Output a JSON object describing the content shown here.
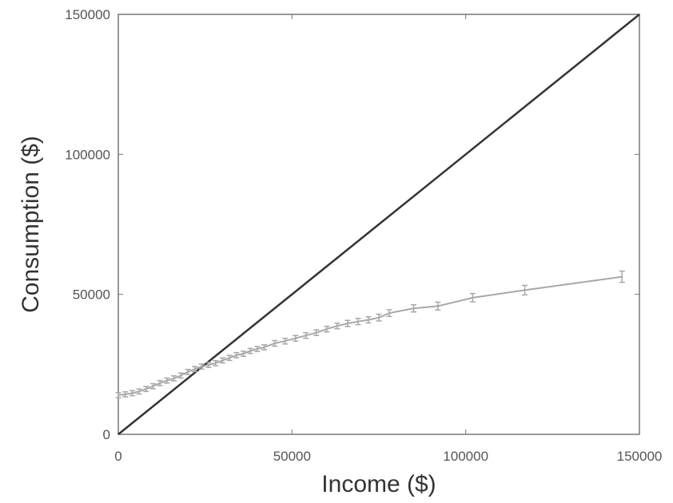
{
  "chart_data": {
    "type": "line",
    "title": "",
    "xlabel": "Income ($)",
    "ylabel": "Consumption ($)",
    "xlim": [
      0,
      150000
    ],
    "ylim": [
      0,
      150000
    ],
    "xticks": [
      "0",
      "50000",
      "100000",
      "150000"
    ],
    "yticks": [
      "0",
      "50000",
      "100000",
      "150000"
    ],
    "grid": false,
    "legend": "none",
    "colors": {
      "reference": "#333333",
      "series": "#a8a8a8",
      "axes": "#777777"
    },
    "series": [
      {
        "type": "reference-line",
        "x": [
          0,
          150000
        ],
        "y": [
          0,
          150000
        ]
      },
      {
        "type": "errorbar-line",
        "x": [
          0,
          2000,
          4000,
          6000,
          8000,
          10000,
          12000,
          14000,
          16000,
          18000,
          20000,
          22000,
          24000,
          26000,
          28000,
          30000,
          32000,
          34000,
          36000,
          38000,
          40000,
          42000,
          45000,
          48000,
          51000,
          54000,
          57000,
          60000,
          63000,
          66000,
          69000,
          72000,
          75000,
          78000,
          85000,
          92000,
          102000,
          117000,
          145000
        ],
        "y": [
          14000,
          14300,
          14700,
          15300,
          16200,
          17200,
          18300,
          19200,
          20000,
          21000,
          22300,
          23300,
          24200,
          24800,
          25400,
          26400,
          27300,
          28300,
          28800,
          29800,
          30500,
          31100,
          32500,
          33300,
          34300,
          35300,
          36300,
          37600,
          38700,
          39600,
          40300,
          40900,
          41700,
          43300,
          45000,
          45800,
          48800,
          51500,
          56300
        ],
        "err": [
          900,
          900,
          900,
          900,
          900,
          900,
          900,
          900,
          900,
          900,
          900,
          900,
          900,
          900,
          900,
          900,
          900,
          900,
          900,
          900,
          900,
          900,
          1000,
          1000,
          1000,
          1000,
          1000,
          1000,
          1000,
          1100,
          1100,
          1100,
          1200,
          1200,
          1300,
          1400,
          1500,
          1700,
          2000
        ]
      }
    ]
  }
}
